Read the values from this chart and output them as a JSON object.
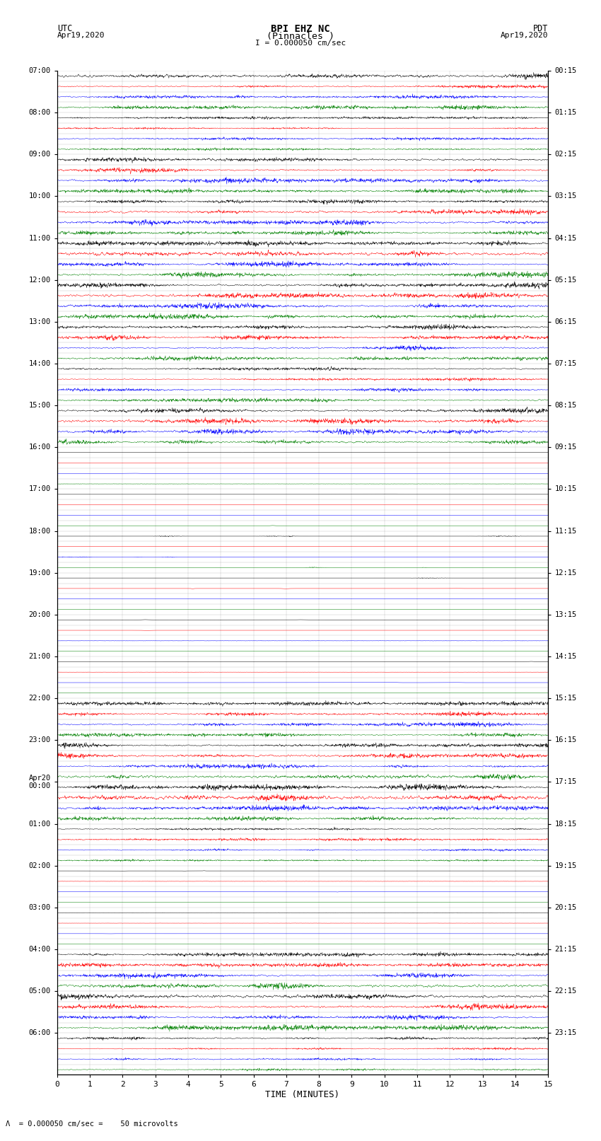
{
  "title_line1": "BPI EHZ NC",
  "title_line2": "(Pinnacles )",
  "scale_text": "I = 0.000050 cm/sec",
  "xlabel": "TIME (MINUTES)",
  "x_min": 0,
  "x_max": 15,
  "bg_color": "#ffffff",
  "grid_color": "#999999",
  "trace_colors": [
    "black",
    "red",
    "blue",
    "green"
  ],
  "utc_labels": [
    "07:00",
    "08:00",
    "09:00",
    "10:00",
    "11:00",
    "12:00",
    "13:00",
    "14:00",
    "15:00",
    "16:00",
    "17:00",
    "18:00",
    "19:00",
    "20:00",
    "21:00",
    "22:00",
    "23:00",
    "Apr20\n00:00",
    "01:00",
    "02:00",
    "03:00",
    "04:00",
    "05:00",
    "06:00"
  ],
  "utc_row_indices": [
    0,
    4,
    8,
    12,
    16,
    20,
    24,
    28,
    32,
    36,
    40,
    44,
    48,
    52,
    56,
    60,
    64,
    68,
    72,
    76,
    80,
    84,
    88,
    92
  ],
  "pdt_labels": [
    "00:15",
    "01:15",
    "02:15",
    "03:15",
    "04:15",
    "05:15",
    "06:15",
    "07:15",
    "08:15",
    "09:15",
    "10:15",
    "11:15",
    "12:15",
    "13:15",
    "14:15",
    "15:15",
    "16:15",
    "17:15",
    "18:15",
    "19:15",
    "20:15",
    "21:15",
    "22:15",
    "23:15"
  ],
  "pdt_row_indices": [
    0,
    4,
    8,
    12,
    16,
    20,
    24,
    28,
    32,
    36,
    40,
    44,
    48,
    52,
    56,
    60,
    64,
    68,
    72,
    76,
    80,
    84,
    88,
    92
  ],
  "num_rows": 96,
  "figsize": [
    8.5,
    16.13
  ],
  "dpi": 100,
  "noise_seed": 42,
  "row_amplitude": [
    0.9,
    0.5,
    0.7,
    0.6,
    0.4,
    0.3,
    0.5,
    0.4,
    0.8,
    0.9,
    0.85,
    0.7,
    0.7,
    0.8,
    0.9,
    0.75,
    0.85,
    0.9,
    0.8,
    0.95,
    0.9,
    0.85,
    0.9,
    0.8,
    0.7,
    0.75,
    0.8,
    0.7,
    0.6,
    0.55,
    0.65,
    0.6,
    0.85,
    0.9,
    0.8,
    0.75,
    0.05,
    0.03,
    0.04,
    0.05,
    0.04,
    0.03,
    0.04,
    0.05,
    0.15,
    0.08,
    0.1,
    0.12,
    0.1,
    0.07,
    0.08,
    0.06,
    0.05,
    0.04,
    0.05,
    0.04,
    0.06,
    0.04,
    0.05,
    0.04,
    0.7,
    0.65,
    0.7,
    0.6,
    0.8,
    0.85,
    0.75,
    0.8,
    0.85,
    0.9,
    0.8,
    0.75,
    0.5,
    0.45,
    0.4,
    0.35,
    0.05,
    0.04,
    0.05,
    0.04,
    0.04,
    0.03,
    0.04,
    0.03,
    0.75,
    0.8,
    0.85,
    0.9,
    0.85,
    0.9,
    0.8,
    0.85,
    0.5,
    0.45,
    0.4,
    0.35
  ]
}
